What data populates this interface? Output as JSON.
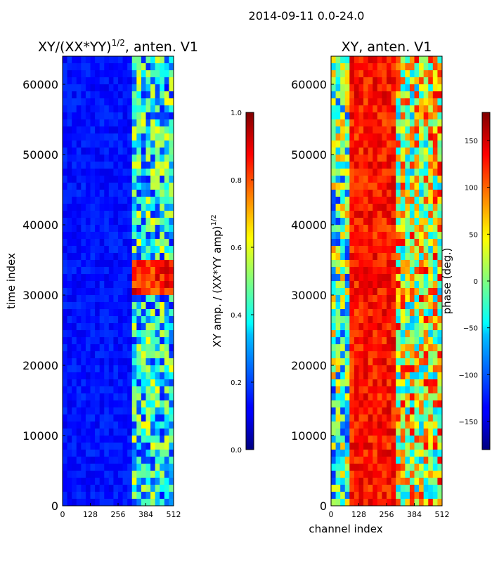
{
  "suptitle": "2014-09-11 0.0-24.0",
  "chart_data": [
    {
      "type": "heatmap",
      "title": "XY/(XX*YY)",
      "title_exponent": "1/2",
      "title_suffix": ", anten. V1",
      "xlabel": "",
      "ylabel": "time index",
      "xlim": [
        0,
        512
      ],
      "ylim": [
        0,
        64000
      ],
      "xticks": [
        0,
        128,
        256,
        384,
        512
      ],
      "yticks": [
        0,
        10000,
        20000,
        30000,
        40000,
        50000,
        60000
      ],
      "colorbar": {
        "label": "XY amp. / (XX*YY amp)",
        "label_exponent": "1/2",
        "range": [
          0.0,
          1.0
        ],
        "ticks": [
          "0.0",
          "0.2",
          "0.4",
          "0.6",
          "0.8",
          "1.0"
        ],
        "colormap": "jet"
      },
      "description_bands": [
        {
          "channels": [
            0,
            325
          ],
          "level": 0.1
        },
        {
          "channels": [
            325,
            512
          ],
          "level": 0.45
        }
      ],
      "hot_rows": [
        29500,
        35000
      ]
    },
    {
      "type": "heatmap",
      "title": "XY, anten. V1",
      "xlabel": "channel index",
      "ylabel": "",
      "xlim": [
        0,
        512
      ],
      "ylim": [
        0,
        64000
      ],
      "xticks": [
        0,
        128,
        256,
        384,
        512
      ],
      "yticks": [
        0,
        10000,
        20000,
        30000,
        40000,
        50000,
        60000
      ],
      "colorbar": {
        "label": "phase (deg.)",
        "range": [
          -180,
          180
        ],
        "ticks": [
          -150,
          -100,
          -50,
          0,
          50,
          100,
          150
        ],
        "colormap": "jet"
      }
    }
  ]
}
